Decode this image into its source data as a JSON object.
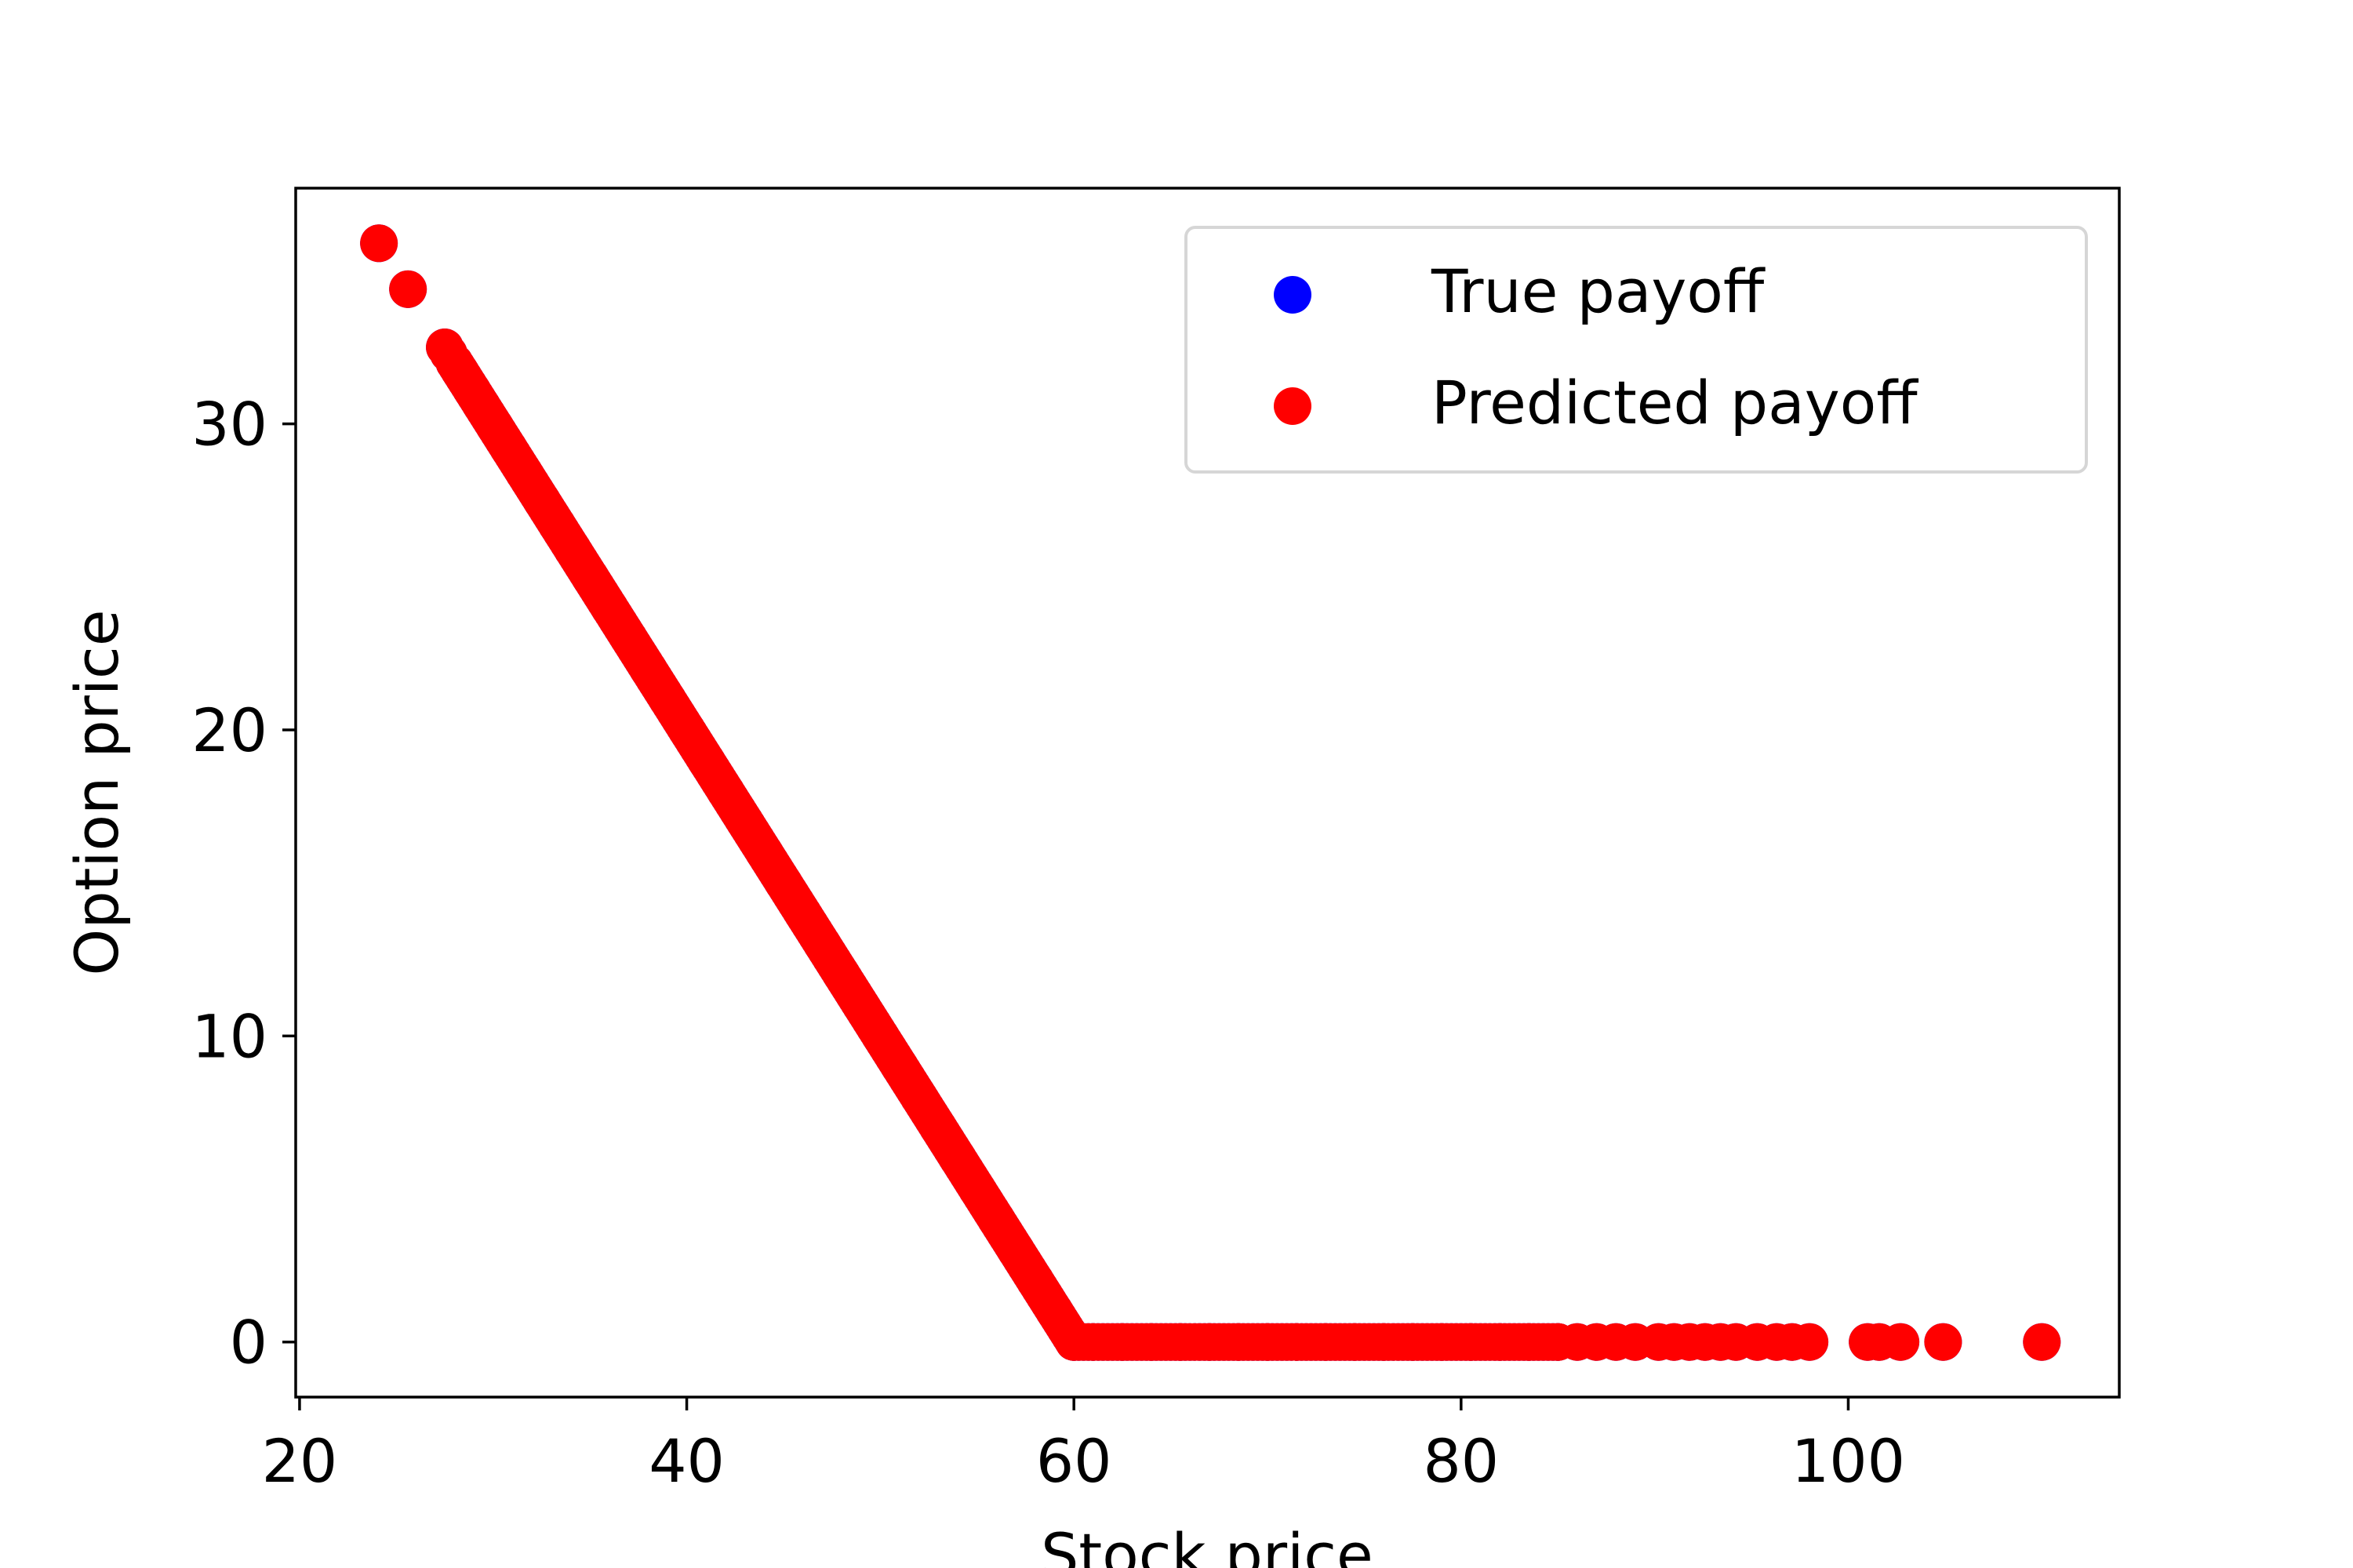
{
  "chart_data": {
    "type": "scatter",
    "title": "",
    "xlabel": "Stock price",
    "ylabel": "Option price",
    "xlim": [
      19.8,
      114.0
    ],
    "ylim": [
      -1.8,
      37.7
    ],
    "x_ticks": [
      20,
      40,
      60,
      80,
      100
    ],
    "y_ticks": [
      0,
      10,
      20,
      30
    ],
    "x_tick_labels": [
      "20",
      "40",
      "60",
      "80",
      "100"
    ],
    "y_tick_labels": [
      "0",
      "10",
      "20",
      "30"
    ],
    "grid": false,
    "legend_position": "top-right",
    "series": [
      {
        "name": "True payoff",
        "color": "#0000ff",
        "marker": "circle",
        "strike": 60,
        "payoff": "max(60 - x, 0)",
        "x": [
          24.1,
          25.6,
          27.5,
          27.7,
          28.3,
          28.9,
          29.4,
          30.1,
          30.8,
          31.6,
          32.5,
          33.3,
          34.1,
          35.0,
          36.0,
          37.0,
          38.0,
          39.0,
          40.0,
          41.0,
          42.0,
          43.0,
          44.0,
          45.0,
          46.0,
          47.0,
          48.0,
          49.0,
          50.0,
          51.0,
          52.0,
          53.0,
          54.0,
          55.0,
          56.0,
          57.0,
          58.0,
          59.0,
          60.0,
          61.0,
          62.5,
          64.0,
          65.5,
          67.0,
          68.5,
          70.0,
          71.5,
          73.0,
          74.5,
          76.0,
          77.5,
          79.0,
          80.5,
          82.0,
          83.5,
          85.0,
          86.0,
          87.0,
          88.0,
          89.0,
          90.2,
          91.0,
          91.8,
          92.6,
          93.4,
          94.2,
          95.3,
          96.3,
          97.1,
          98.0,
          101.0,
          101.6,
          102.7,
          104.9,
          110.0
        ],
        "y": [
          35.9,
          34.4,
          32.5,
          32.3,
          31.7,
          31.1,
          30.6,
          29.9,
          29.2,
          28.4,
          27.5,
          26.7,
          25.9,
          25.0,
          24.0,
          23.0,
          22.0,
          21.0,
          20.0,
          19.0,
          18.0,
          17.0,
          16.0,
          15.0,
          14.0,
          13.0,
          12.0,
          11.0,
          10.0,
          9.0,
          8.0,
          7.0,
          6.0,
          5.0,
          4.0,
          3.0,
          2.0,
          1.0,
          0.0,
          0.0,
          0.0,
          0.0,
          0.0,
          0.0,
          0.0,
          0.0,
          0.0,
          0.0,
          0.0,
          0.0,
          0.0,
          0.0,
          0.0,
          0.0,
          0.0,
          0.0,
          0.0,
          0.0,
          0.0,
          0.0,
          0.0,
          0.0,
          0.0,
          0.0,
          0.0,
          0.0,
          0.0,
          0.0,
          0.0,
          0.0,
          0.0,
          0.0,
          0.0,
          0.0,
          0.0
        ]
      },
      {
        "name": "Predicted payoff",
        "color": "#ff0000",
        "marker": "circle",
        "strike": 60,
        "payoff": "max(60 - x, 0)",
        "x": [
          24.1,
          25.6,
          27.5,
          27.7,
          28.3,
          28.9,
          29.4,
          30.1,
          30.8,
          31.6,
          32.5,
          33.3,
          34.1,
          35.0,
          36.0,
          37.0,
          38.0,
          39.0,
          40.0,
          41.0,
          42.0,
          43.0,
          44.0,
          45.0,
          46.0,
          47.0,
          48.0,
          49.0,
          50.0,
          51.0,
          52.0,
          53.0,
          54.0,
          55.0,
          56.0,
          57.0,
          58.0,
          59.0,
          60.0,
          61.0,
          62.5,
          64.0,
          65.5,
          67.0,
          68.5,
          70.0,
          71.5,
          73.0,
          74.5,
          76.0,
          77.5,
          79.0,
          80.5,
          82.0,
          83.5,
          85.0,
          86.0,
          87.0,
          88.0,
          89.0,
          90.2,
          91.0,
          91.8,
          92.6,
          93.4,
          94.2,
          95.3,
          96.3,
          97.1,
          98.0,
          101.0,
          101.6,
          102.7,
          104.9,
          110.0
        ],
        "y": [
          35.9,
          34.4,
          32.5,
          32.3,
          31.7,
          31.1,
          30.6,
          29.9,
          29.2,
          28.4,
          27.5,
          26.7,
          25.9,
          25.0,
          24.0,
          23.0,
          22.0,
          21.0,
          20.0,
          19.0,
          18.0,
          17.0,
          16.0,
          15.0,
          14.0,
          13.0,
          12.0,
          11.0,
          10.0,
          9.0,
          8.0,
          7.0,
          6.0,
          5.0,
          4.0,
          3.0,
          2.0,
          1.0,
          0.0,
          0.0,
          0.0,
          0.0,
          0.0,
          0.0,
          0.0,
          0.0,
          0.0,
          0.0,
          0.0,
          0.0,
          0.0,
          0.0,
          0.0,
          0.0,
          0.0,
          0.0,
          0.0,
          0.0,
          0.0,
          0.0,
          0.0,
          0.0,
          0.0,
          0.0,
          0.0,
          0.0,
          0.0,
          0.0,
          0.0,
          0.0,
          0.0,
          0.0,
          0.0,
          0.0,
          0.0
        ]
      }
    ]
  }
}
